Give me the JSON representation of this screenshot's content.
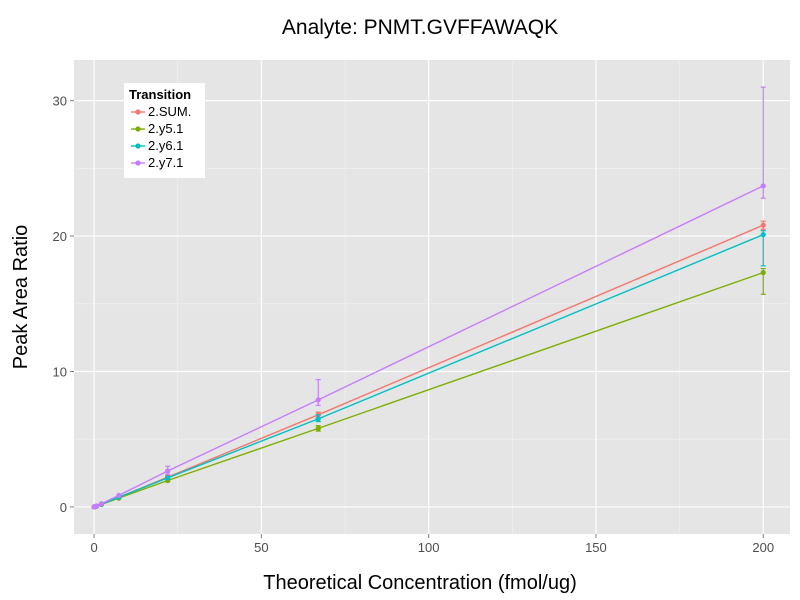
{
  "chart_data": {
    "type": "line",
    "title": "Analyte: PNMT.GVFFAWAQK",
    "xlabel": "Theoretical Concentration (fmol/ug)",
    "ylabel": "Peak Area Ratio",
    "xlim": [
      -6,
      208
    ],
    "ylim": [
      -2,
      33
    ],
    "x_ticks": [
      0,
      50,
      100,
      150,
      200
    ],
    "y_ticks": [
      0,
      10,
      20,
      30
    ],
    "x_tick_labels": [
      "0",
      "50",
      "100",
      "150",
      "200"
    ],
    "y_tick_labels": [
      "0",
      "10",
      "20",
      "30"
    ],
    "grid": true,
    "legend": {
      "title": "Transition",
      "position": "top-left"
    },
    "x": [
      0,
      0.25,
      0.74,
      2.2,
      7.4,
      22,
      67,
      200
    ],
    "series": [
      {
        "name": "2.SUM.",
        "color": "#F8766D",
        "values": [
          0,
          0.02,
          0.06,
          0.2,
          0.7,
          2.2,
          6.8,
          20.8
        ],
        "err_low": [
          0,
          0.02,
          0.06,
          0.2,
          0.7,
          2.1,
          6.6,
          20.5
        ],
        "err_high": [
          0,
          0.02,
          0.06,
          0.2,
          0.7,
          2.3,
          7.0,
          21.1
        ]
      },
      {
        "name": "2.y5.1",
        "color": "#7CAE00",
        "values": [
          0,
          0.02,
          0.05,
          0.18,
          0.65,
          1.95,
          5.8,
          17.3
        ],
        "err_low": [
          0,
          0.02,
          0.05,
          0.18,
          0.65,
          1.85,
          5.6,
          15.7
        ],
        "err_high": [
          0,
          0.02,
          0.05,
          0.18,
          0.65,
          2.05,
          6.0,
          17.6
        ]
      },
      {
        "name": "2.y6.1",
        "color": "#00BFC4",
        "values": [
          0,
          0.02,
          0.06,
          0.2,
          0.72,
          2.15,
          6.5,
          20.1
        ],
        "err_low": [
          0,
          0.02,
          0.06,
          0.2,
          0.72,
          2.05,
          6.3,
          17.8
        ],
        "err_high": [
          0,
          0.02,
          0.06,
          0.2,
          0.72,
          2.25,
          6.8,
          20.4
        ]
      },
      {
        "name": "2.y7.1",
        "color": "#C77CFF",
        "values": [
          0,
          0.02,
          0.07,
          0.24,
          0.85,
          2.65,
          7.9,
          23.7
        ],
        "err_low": [
          0,
          0.02,
          0.07,
          0.24,
          0.85,
          2.4,
          7.5,
          22.8
        ],
        "err_high": [
          0,
          0.02,
          0.07,
          0.24,
          0.85,
          3.0,
          9.4,
          31.0
        ]
      }
    ]
  }
}
